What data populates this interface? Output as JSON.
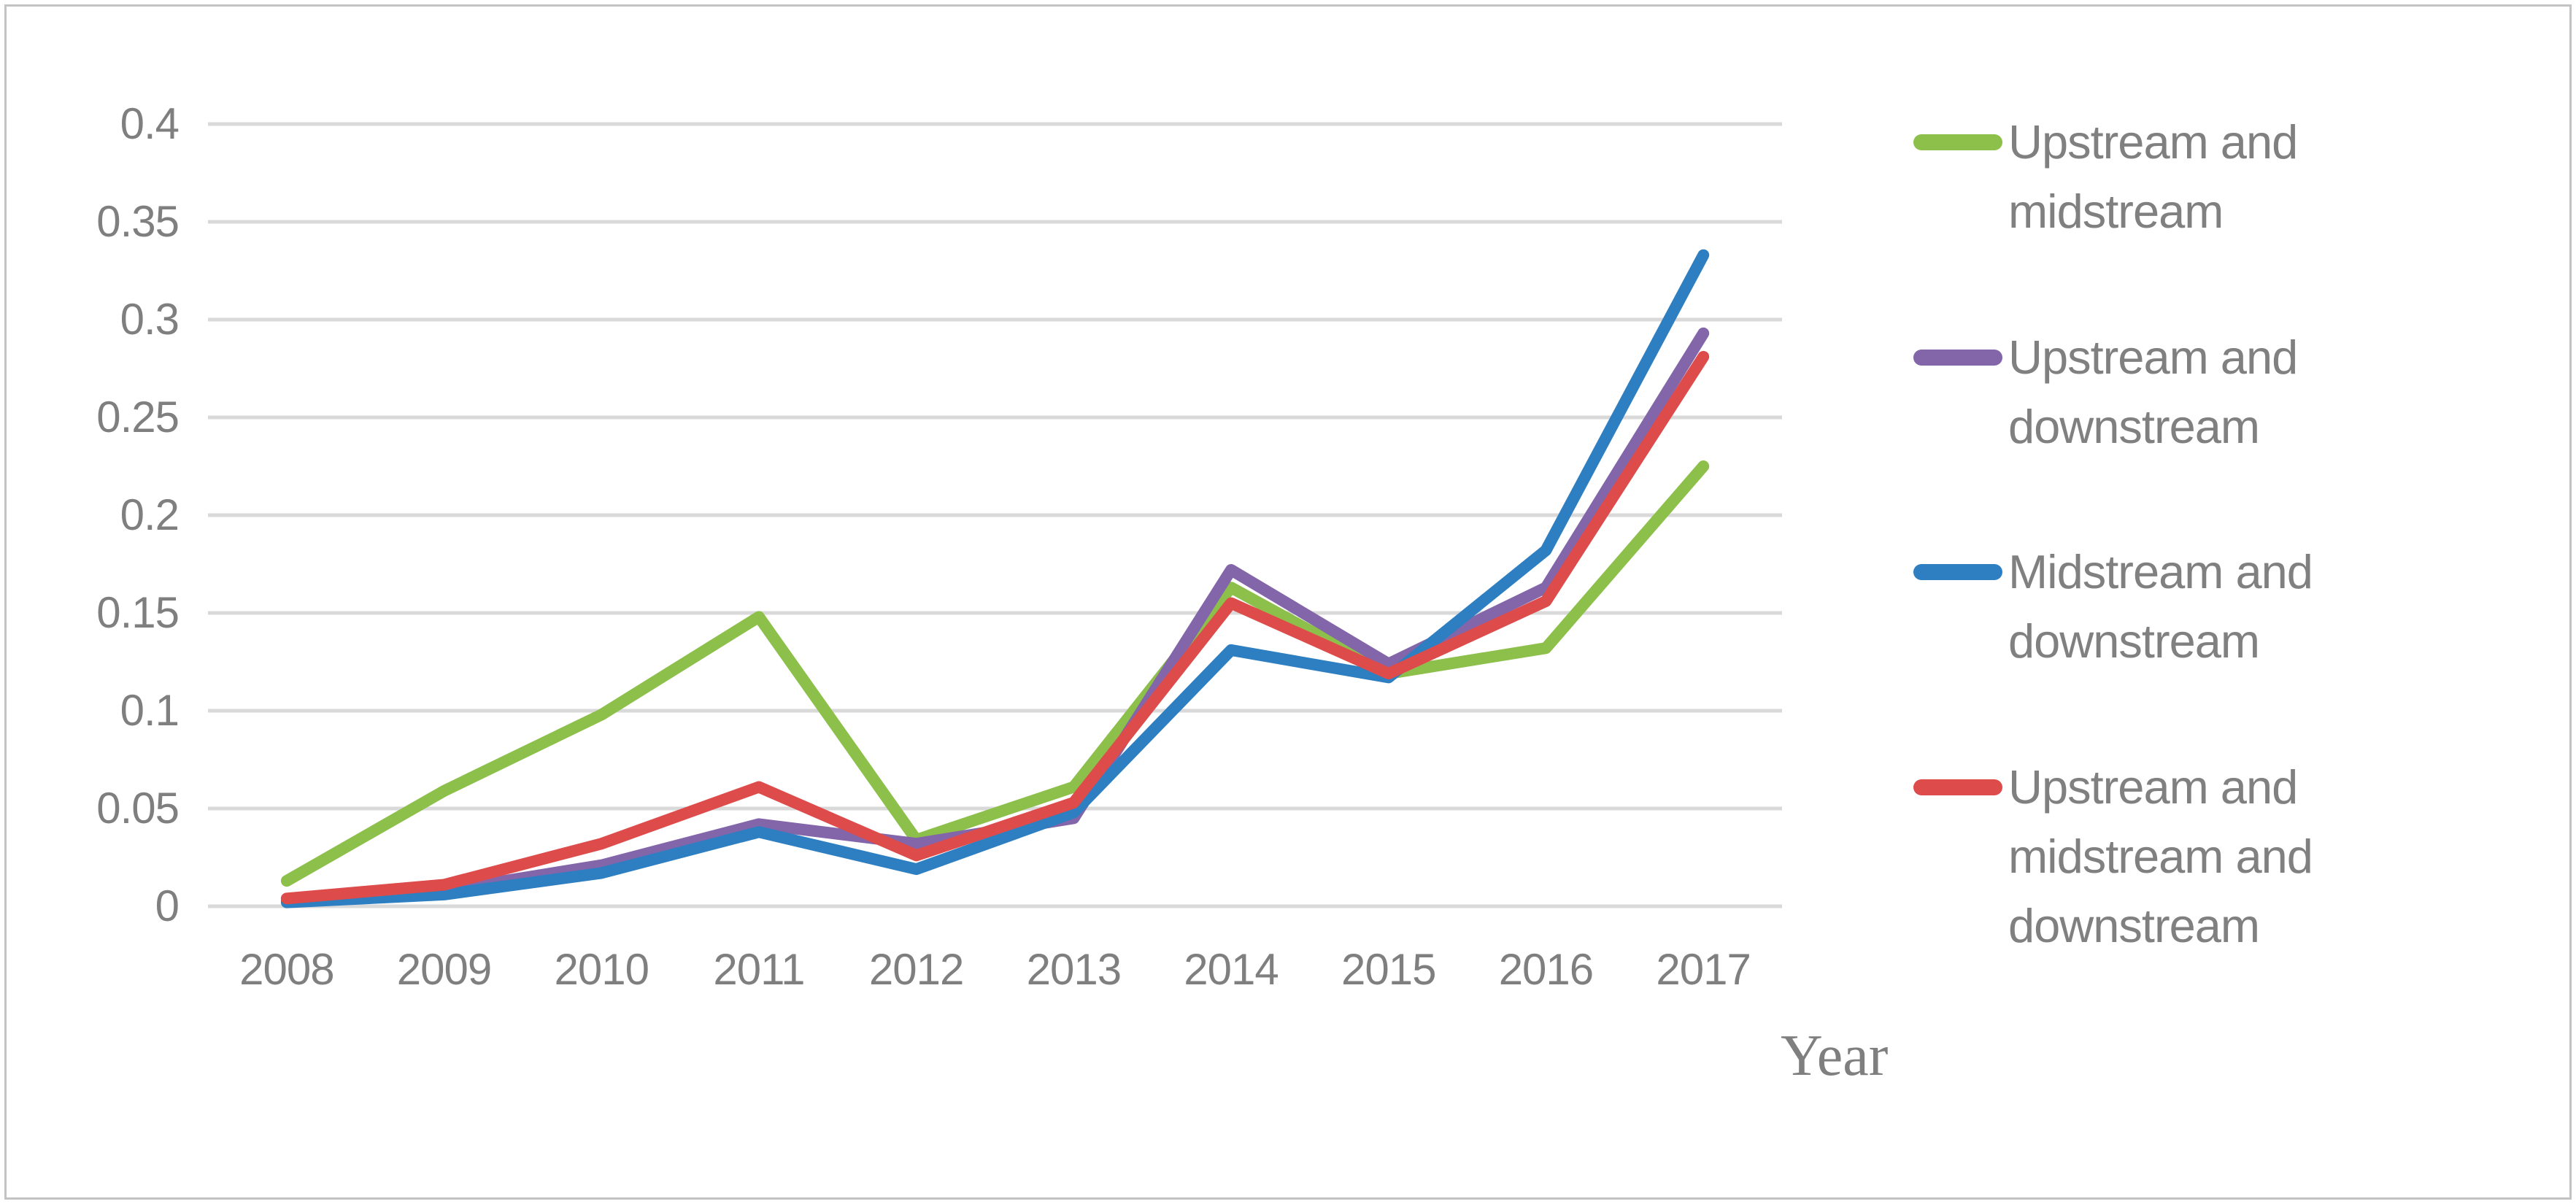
{
  "figure": {
    "background_color": "#ffffff",
    "border_color": "#c3c3c3",
    "gridline_color": "#d9d9d9",
    "axis_text_color": "#7f7f7f",
    "legend_text_color": "#808080"
  },
  "chart_data": {
    "type": "line",
    "title": "",
    "xlabel": "Year",
    "ylabel": "",
    "x": [
      2008,
      2009,
      2010,
      2011,
      2012,
      2013,
      2014,
      2015,
      2016,
      2017
    ],
    "x_tick_labels": [
      "2008",
      "2009",
      "2010",
      "2011",
      "2012",
      "2013",
      "2014",
      "2015",
      "2016",
      "2017"
    ],
    "ylim": [
      0,
      0.4
    ],
    "ytick_step": 0.05,
    "y_tick_labels_top_to_bottom": [
      "0.4",
      "0.35",
      "0.3",
      "0.25",
      "0.2",
      "0.15",
      "0.1",
      "0.05",
      "0"
    ],
    "grid": true,
    "legend_position": "right",
    "series": [
      {
        "name": "Upstream and midstream",
        "label_lines": [
          "Upstream and",
          "midstream"
        ],
        "color": "#8dc04b",
        "values": [
          0.013,
          0.059,
          0.098,
          0.148,
          0.034,
          0.061,
          0.163,
          0.119,
          0.132,
          0.225
        ]
      },
      {
        "name": "Upstream and downstream",
        "label_lines": [
          "Upstream and",
          "downstream"
        ],
        "color": "#8365a9",
        "values": [
          0.003,
          0.008,
          0.021,
          0.042,
          0.032,
          0.045,
          0.172,
          0.124,
          0.163,
          0.293
        ]
      },
      {
        "name": "Midstream and downstream",
        "label_lines": [
          "Midstream and",
          "downstream"
        ],
        "color": "#2e7fc2",
        "values": [
          0.002,
          0.006,
          0.017,
          0.038,
          0.019,
          0.048,
          0.131,
          0.117,
          0.182,
          0.333
        ]
      },
      {
        "name": "Upstream and midstream and downstream",
        "label_lines": [
          "Upstream and",
          "midstream and",
          "downstream"
        ],
        "color": "#de4b4b",
        "values": [
          0.004,
          0.011,
          0.032,
          0.061,
          0.026,
          0.053,
          0.155,
          0.119,
          0.156,
          0.281
        ]
      }
    ]
  }
}
